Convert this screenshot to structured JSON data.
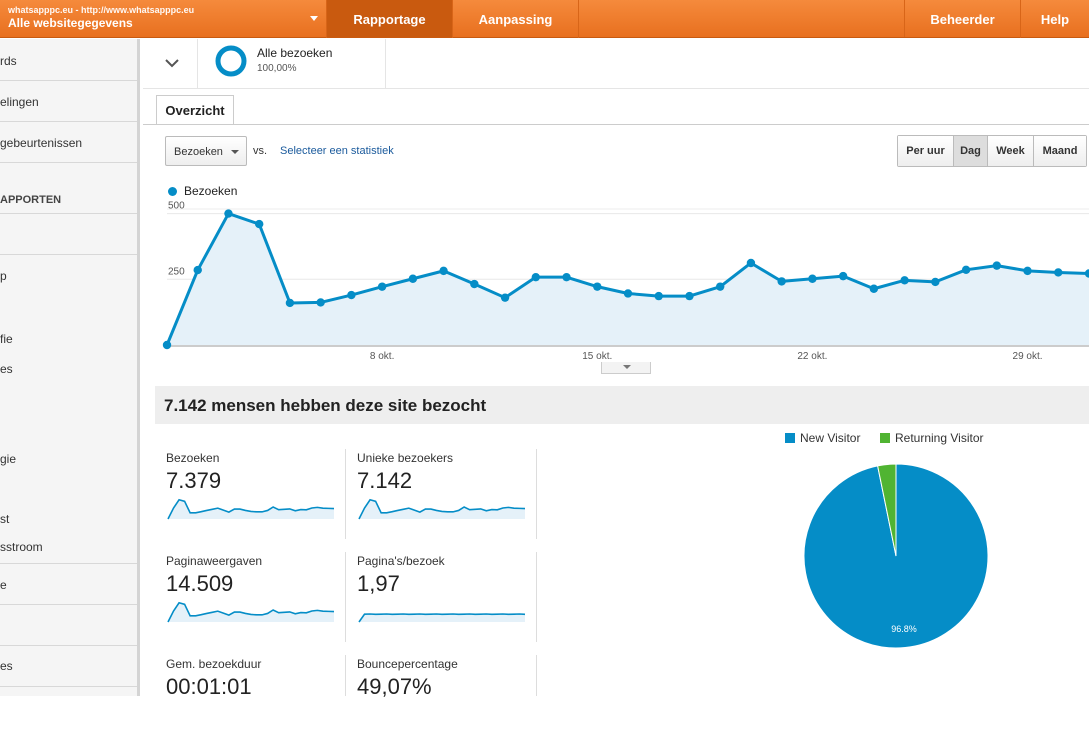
{
  "header": {
    "account_small": "whatsapppc.eu - http://www.whatsapppc.eu",
    "account_name": "Alle websitegegevens",
    "nav": [
      "Rapportage",
      "Aanpassing",
      "Beheerder",
      "Help"
    ]
  },
  "sidebar": {
    "items": [
      {
        "label": "rds"
      },
      {
        "label": "elingen"
      },
      {
        "label": "gebeurtenissen"
      },
      {
        "label": "APPORTEN"
      },
      {
        "label": "p"
      },
      {
        "label": "fie"
      },
      {
        "label": "es"
      },
      {
        "label": "gie"
      },
      {
        "label": "st"
      },
      {
        "label": "sstroom"
      },
      {
        "label": "e"
      },
      {
        "label": "es"
      }
    ]
  },
  "segment": {
    "title": "Alle bezoeken",
    "percent": "100,00%"
  },
  "tab": "Overzicht",
  "toolbar": {
    "metric": "Bezoeken",
    "vs": "vs.",
    "select_stat": "Selecteer een statistiek",
    "periods": [
      "Per uur",
      "Dag",
      "Week",
      "Maand"
    ],
    "selected_period": "Dag"
  },
  "colors": {
    "accent": "#058dc7",
    "returning": "#50b432",
    "header": "#f07e2c"
  },
  "chart_data": {
    "type": "area",
    "series": [
      {
        "name": "Bezoeken",
        "values": [
          0,
          285,
          500,
          460,
          160,
          162,
          190,
          222,
          252,
          282,
          232,
          180,
          258,
          258,
          222,
          196,
          186,
          186,
          222,
          312,
          242,
          252,
          262,
          214,
          246,
          240,
          286,
          302,
          282,
          276,
          272
        ]
      }
    ],
    "ylim": [
      0,
      525
    ],
    "y_ticks": [
      250,
      500
    ],
    "y_tick_labels": [
      "250",
      "500"
    ],
    "x_tick_labels": [
      "8 okt.",
      "15 okt.",
      "22 okt.",
      "29 okt."
    ]
  },
  "summary": {
    "headline": "7.142 mensen hebben deze site bezocht",
    "stats": [
      {
        "label": "Bezoeken",
        "value": "7.379"
      },
      {
        "label": "Unieke bezoekers",
        "value": "7.142"
      },
      {
        "label": "Paginaweergaven",
        "value": "14.509"
      },
      {
        "label": "Pagina's/bezoek",
        "value": "1,97"
      },
      {
        "label": "Gem. bezoekduur",
        "value": "00:01:01"
      },
      {
        "label": "Bouncepercentage",
        "value": "49,07%"
      }
    ]
  },
  "pie": {
    "legend": [
      "New Visitor",
      "Returning Visitor"
    ],
    "slices": [
      96.8,
      3.2
    ],
    "label": "96.8%"
  }
}
